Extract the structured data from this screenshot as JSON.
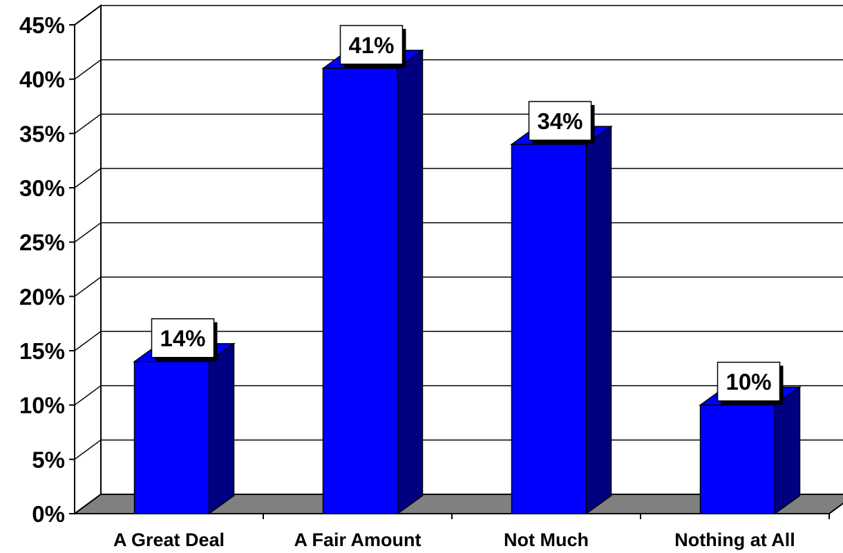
{
  "chart_data": {
    "type": "bar",
    "categories": [
      "A Great Deal",
      "A Fair Amount",
      "Not Much",
      "Nothing at All"
    ],
    "values": [
      14,
      41,
      34,
      10
    ],
    "data_labels": [
      "14%",
      "41%",
      "34%",
      "10%"
    ],
    "title": "",
    "xlabel": "",
    "ylabel": "",
    "ylim": [
      0,
      45
    ],
    "y_ticks": [
      0,
      5,
      10,
      15,
      20,
      25,
      30,
      35,
      40,
      45
    ],
    "y_tick_labels": [
      "0%",
      "5%",
      "10%",
      "15%",
      "20%",
      "25%",
      "30%",
      "35%",
      "40%",
      "45%"
    ],
    "style": "3d-column",
    "grid": true,
    "legend": "none",
    "colors": {
      "bar_front": "#0000ff",
      "bar_side": "#000080",
      "floor": "#808080",
      "label_box": "#ffffff"
    }
  }
}
